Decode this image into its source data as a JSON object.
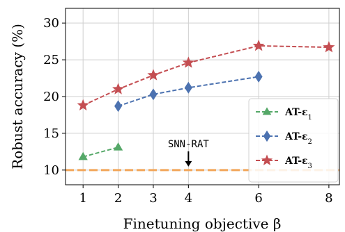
{
  "chart_data": {
    "type": "line",
    "xlabel": "Finetuning objective β",
    "ylabel": "Robust accuracy (%)",
    "xlim": [
      0.5,
      8.3
    ],
    "ylim": [
      8,
      32
    ],
    "x_ticks": [
      1,
      2,
      3,
      4,
      6,
      8
    ],
    "y_ticks": [
      10,
      15,
      20,
      25,
      30
    ],
    "grid": true,
    "legend_position": "lower-right",
    "series": [
      {
        "name": "AT-ε1",
        "color": "#55a868",
        "marker": "triangle",
        "linestyle": "dashed",
        "x": [
          1,
          2
        ],
        "y": [
          11.8,
          13.1
        ]
      },
      {
        "name": "AT-ε2",
        "color": "#4c72b0",
        "marker": "diamond",
        "linestyle": "dashed",
        "x": [
          2,
          3,
          4,
          6
        ],
        "y": [
          18.7,
          20.3,
          21.2,
          22.7
        ]
      },
      {
        "name": "AT-ε3",
        "color": "#c44e52",
        "marker": "star",
        "linestyle": "dashed",
        "x": [
          1,
          2,
          3,
          4,
          6,
          8
        ],
        "y": [
          18.8,
          21.0,
          22.9,
          24.6,
          26.9,
          26.7
        ]
      }
    ],
    "reference_line": {
      "y": 10.0,
      "color": "#f2a65a",
      "linestyle": "dashed"
    },
    "annotations": [
      {
        "text": "SNN-RAT",
        "x": 4,
        "y": 10.0,
        "arrow": "down"
      }
    ]
  }
}
